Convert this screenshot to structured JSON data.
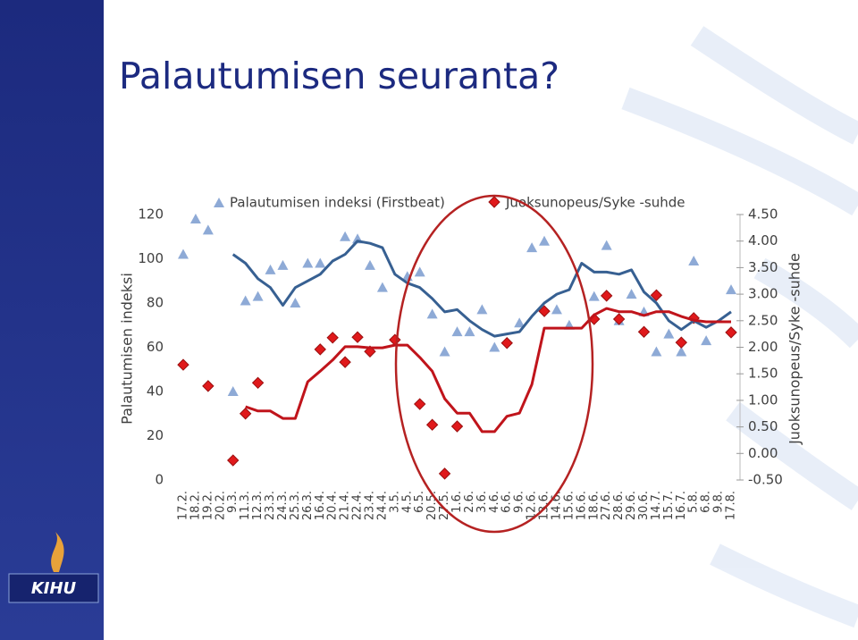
{
  "title": "Palautumisen seuranta?",
  "logo": "KIHU",
  "chart_data": {
    "type": "line",
    "y_label": "Palautumisen indeksi",
    "y2_label": "Juoksunopeus/Syke -suhde",
    "categories": [
      "17.2.",
      "18.2.",
      "19.2.",
      "20.2.",
      "9.3.",
      "11.3.",
      "12.3.",
      "23.3.",
      "24.3.",
      "25.3.",
      "26.3.",
      "16.4.",
      "20.4.",
      "21.4.",
      "22.4.",
      "23.4.",
      "24.4.",
      "3.5.",
      "4.5.",
      "6.5.",
      "20.5.",
      "27.5.",
      "1.6.",
      "2.6.",
      "3.6.",
      "4.6.",
      "6.6.",
      "9.6.",
      "12.6.",
      "13.6.",
      "14.6.",
      "15.6.",
      "16.6.",
      "18.6.",
      "27.6.",
      "28.6.",
      "29.6.",
      "30.6.",
      "14.7.",
      "15.7.",
      "16.7.",
      "5.8.",
      "6.8.",
      "9.8.",
      "17.8."
    ],
    "ylim": [
      0,
      120
    ],
    "yticks": [
      0,
      20,
      40,
      60,
      80,
      100,
      120
    ],
    "y2lim": [
      -0.5,
      4.5
    ],
    "y2ticks": [
      {
        "value": -0.5,
        "label": "-0.50"
      },
      {
        "value": 0,
        "label": "0.00"
      },
      {
        "value": 0.5,
        "label": "0.50"
      },
      {
        "value": 1,
        "label": "1.00"
      },
      {
        "value": 1.5,
        "label": "1.50"
      },
      {
        "value": 2,
        "label": "2.00"
      },
      {
        "value": 2.5,
        "label": "2.50"
      },
      {
        "value": 3,
        "label": "3.00"
      },
      {
        "value": 3.5,
        "label": "3.50"
      },
      {
        "value": 4,
        "label": "4.00"
      },
      {
        "value": 4.5,
        "label": "4.50"
      }
    ],
    "grid": false,
    "series": [
      {
        "name": "Palautumisen indeksi (Firstbeat)",
        "mark": "triangle",
        "color": "#8eaad6",
        "values": [
          102,
          118,
          113,
          null,
          40,
          81,
          83,
          95,
          97,
          80,
          98,
          98,
          null,
          110,
          109,
          97,
          87,
          null,
          92,
          94,
          75,
          58,
          67,
          67,
          77,
          60,
          null,
          71,
          105,
          108,
          77,
          70,
          null,
          83,
          106,
          72,
          84,
          76,
          58,
          66,
          58,
          99,
          63,
          null,
          86
        ]
      },
      {
        "name": "Juoksunopeus/Syke -suhde",
        "mark": "diamond",
        "color": "#e0191b",
        "axis": "y2",
        "values": [
          1.67,
          null,
          1.27,
          null,
          -0.13,
          0.75,
          1.33,
          null,
          null,
          null,
          null,
          1.96,
          2.18,
          1.72,
          2.19,
          1.92,
          null,
          2.14,
          null,
          0.93,
          0.54,
          -0.38,
          0.51,
          null,
          null,
          null,
          2.08,
          null,
          null,
          2.68,
          null,
          null,
          null,
          2.53,
          2.97,
          2.53,
          null,
          2.29,
          2.98,
          null,
          2.09,
          2.55,
          null,
          null,
          2.28
        ]
      },
      {
        "mark": "line",
        "color": "#376092",
        "values": [
          null,
          null,
          null,
          null,
          102,
          98,
          91,
          87,
          79,
          87,
          90,
          93,
          99,
          102,
          108,
          107,
          105,
          93,
          89,
          87,
          82,
          76,
          77,
          72,
          68,
          65,
          66,
          67,
          74,
          80,
          84,
          86,
          98,
          94,
          94,
          93,
          95,
          85,
          80,
          72,
          68,
          72,
          69,
          72,
          76
        ]
      },
      {
        "mark": "line",
        "color": "#c0141b",
        "axis": "y2",
        "values": [
          null,
          null,
          null,
          null,
          null,
          0.88,
          0.8,
          0.8,
          0.66,
          0.66,
          1.35,
          1.55,
          1.76,
          2.01,
          2.01,
          1.99,
          1.99,
          2.04,
          2.04,
          1.81,
          1.55,
          1.03,
          0.76,
          0.76,
          0.41,
          0.41,
          0.7,
          0.76,
          1.3,
          2.36,
          2.36,
          2.36,
          2.36,
          2.61,
          2.73,
          2.67,
          2.67,
          2.6,
          2.67,
          2.67,
          2.58,
          2.51,
          2.48,
          2.48,
          2.48
        ]
      }
    ]
  }
}
